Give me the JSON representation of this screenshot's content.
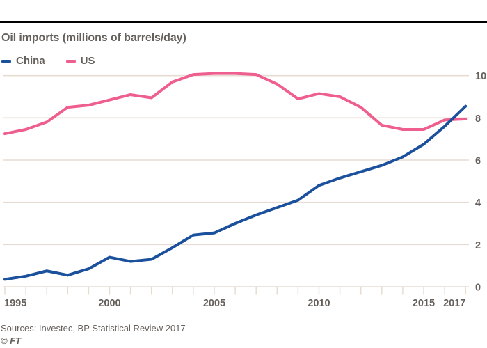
{
  "header": {
    "title": "Oil imports (millions of barrels/day)"
  },
  "footer": {
    "source": "Sources: Investec, BP Statistical Review 2017",
    "credit": "© FT"
  },
  "colors": {
    "china_line": "#1b519c",
    "us_line": "#ee5f8f",
    "grid": "#e7dcd2",
    "text": "#66605c",
    "top_rule": "#000000"
  },
  "chart_data": {
    "type": "line",
    "title": "Oil imports (millions of barrels/day)",
    "xlabel": "",
    "ylabel": "millions of barrels/day",
    "x": [
      1995,
      1996,
      1997,
      1998,
      1999,
      2000,
      2001,
      2002,
      2003,
      2004,
      2005,
      2006,
      2007,
      2008,
      2009,
      2010,
      2011,
      2012,
      2013,
      2014,
      2015,
      2016,
      2017
    ],
    "series": [
      {
        "name": "China",
        "color": "#1b519c",
        "values": [
          0.35,
          0.5,
          0.75,
          0.55,
          0.85,
          1.4,
          1.2,
          1.3,
          1.85,
          2.45,
          2.55,
          3.0,
          3.4,
          3.75,
          4.1,
          4.8,
          5.15,
          5.45,
          5.75,
          6.15,
          6.75,
          7.6,
          8.55
        ]
      },
      {
        "name": "US",
        "color": "#ee5f8f",
        "values": [
          7.25,
          7.45,
          7.8,
          8.5,
          8.6,
          8.85,
          9.1,
          8.95,
          9.7,
          10.05,
          10.1,
          10.1,
          10.05,
          9.6,
          8.9,
          9.15,
          9.0,
          8.5,
          7.65,
          7.45,
          7.45,
          7.9,
          7.95
        ]
      }
    ],
    "x_tick_years": [
      1995,
      2000,
      2005,
      2010,
      2015,
      2017
    ],
    "x_tick_labels": [
      "1995",
      "2000",
      "2005",
      "2010",
      "2015",
      "2017"
    ],
    "y_ticks": [
      0,
      2,
      4,
      6,
      8,
      10
    ],
    "y_tick_labels": [
      "0",
      "2",
      "4",
      "6",
      "8",
      "10"
    ],
    "ylim": [
      0,
      10.3
    ],
    "xlim": [
      1995,
      2017.2
    ],
    "grid": true,
    "legend_position": "top-left",
    "y_axis_side": "right"
  }
}
